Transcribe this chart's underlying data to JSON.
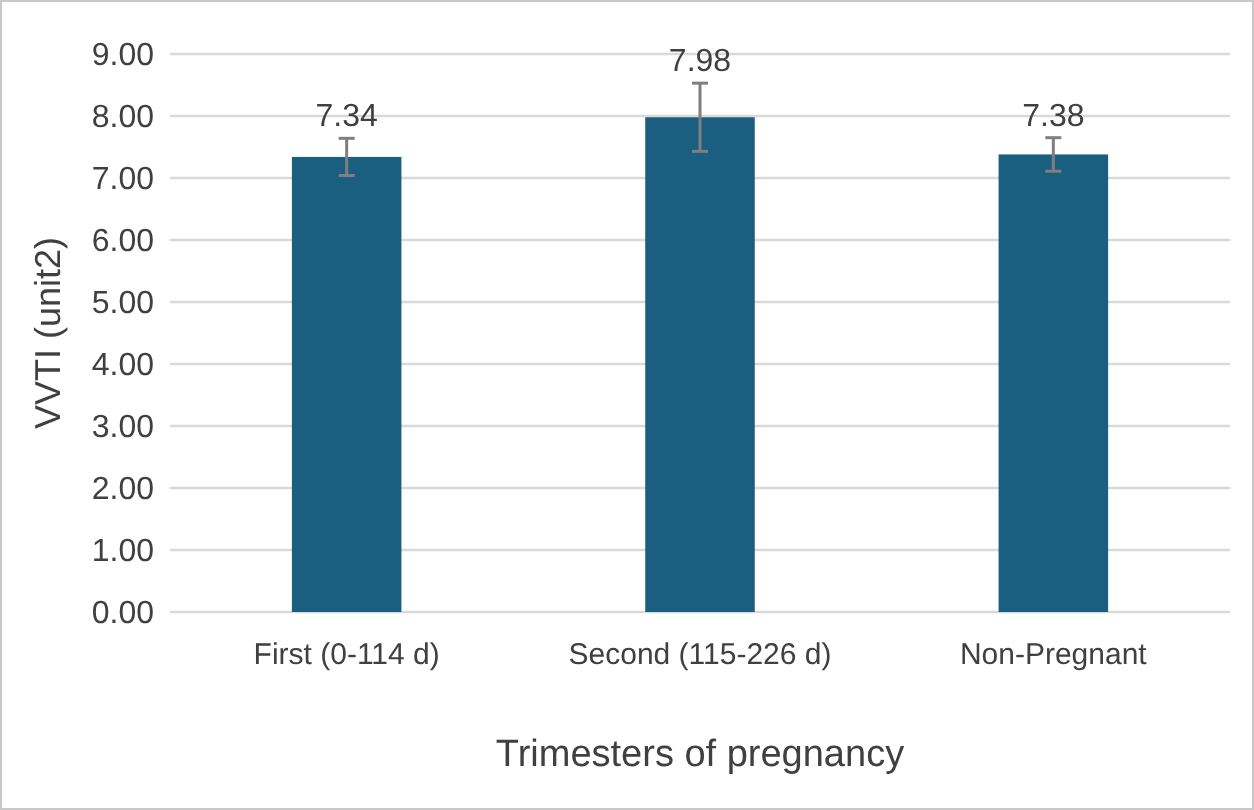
{
  "chart_data": {
    "type": "bar",
    "xlabel": "Trimesters of pregnancy",
    "ylabel": "VVTI (unit2)",
    "categories": [
      "First (0-114 d)",
      "Second (115-226 d)",
      "Non-Pregnant"
    ],
    "values": [
      7.34,
      7.98,
      7.38
    ],
    "color": "#1a5e80",
    "errors": [
      0.3,
      0.55,
      0.27
    ],
    "ylim": [
      0,
      9
    ],
    "yticks": [
      {
        "value": 0,
        "label": "0.00"
      },
      {
        "value": 1,
        "label": "1.00"
      },
      {
        "value": 2,
        "label": "2.00"
      },
      {
        "value": 3,
        "label": "3.00"
      },
      {
        "value": 4,
        "label": "4.00"
      },
      {
        "value": 5,
        "label": "5.00"
      },
      {
        "value": 6,
        "label": "6.00"
      },
      {
        "value": 7,
        "label": "7.00"
      },
      {
        "value": 8,
        "label": "8.00"
      },
      {
        "value": 9,
        "label": "9.00"
      }
    ],
    "grid": "y",
    "data_labels": true
  }
}
